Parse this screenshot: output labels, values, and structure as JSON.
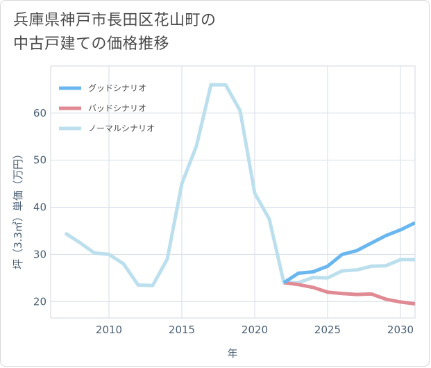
{
  "chart_data": {
    "type": "line",
    "title": "兵庫県神戸市長田区花山町の\n中古戸建ての価格推移",
    "xlabel": "年",
    "ylabel": "坪（3.3㎡）単価（万円）",
    "xlim": [
      2006,
      2031
    ],
    "ylim": [
      16.5,
      70
    ],
    "x_ticks": [
      2010,
      2015,
      2020,
      2025,
      2030
    ],
    "y_ticks": [
      20,
      30,
      40,
      50,
      60
    ],
    "grid": true,
    "legend_position": "top-left",
    "series": [
      {
        "name": "グッドシナリオ",
        "color": "#6ab7ef",
        "x": [
          2022,
          2023,
          2024,
          2025,
          2026,
          2027,
          2028,
          2029,
          2030,
          2031
        ],
        "values": [
          24,
          26,
          26.3,
          27.5,
          30,
          30.8,
          32.4,
          34,
          35.2,
          36.7
        ]
      },
      {
        "name": "バッドシナリオ",
        "color": "#e08a93",
        "x": [
          2022,
          2023,
          2024,
          2025,
          2026,
          2027,
          2028,
          2029,
          2030,
          2031
        ],
        "values": [
          24,
          23.6,
          23,
          22,
          21.7,
          21.5,
          21.6,
          20.5,
          19.9,
          19.5
        ]
      },
      {
        "name": "ノーマルシナリオ",
        "color": "#bcdfee",
        "x": [
          2007,
          2008,
          2009,
          2010,
          2011,
          2012,
          2013,
          2014,
          2015,
          2016,
          2017,
          2018,
          2019,
          2020,
          2021,
          2022,
          2023,
          2024,
          2025,
          2026,
          2027,
          2028,
          2029,
          2030,
          2031
        ],
        "values": [
          34.5,
          32.5,
          30.3,
          30,
          28,
          23.5,
          23.4,
          29,
          45,
          53,
          66,
          66,
          60.5,
          43,
          37.5,
          24,
          24,
          25.1,
          25,
          26.5,
          26.7,
          27.5,
          27.6,
          28.9,
          28.9
        ]
      }
    ]
  }
}
